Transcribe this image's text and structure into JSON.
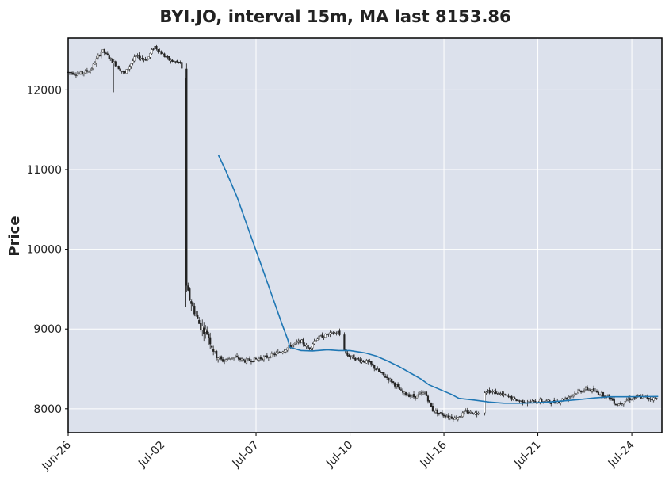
{
  "chart_data": {
    "type": "candlestick",
    "title": "BYI.JO, interval 15m, MA last 8153.86",
    "xlabel": "",
    "ylabel": "Price",
    "ylim": [
      7700,
      12650
    ],
    "yticks": [
      8000,
      9000,
      10000,
      11000,
      12000
    ],
    "xticks": [
      "Jun-26",
      "Jul-02",
      "Jul-07",
      "Jul-10",
      "Jul-16",
      "Jul-21",
      "Jul-24"
    ],
    "grid": true,
    "colors": {
      "plot_bg": "#dce1ec",
      "grid": "#ffffff",
      "candle": "#222222",
      "ma_line": "#1f77b4",
      "frame": "#000000"
    },
    "price_path": [
      [
        0,
        12220
      ],
      [
        3,
        12200
      ],
      [
        6,
        12250
      ],
      [
        9,
        12500
      ],
      [
        12,
        12350
      ],
      [
        15,
        12200
      ],
      [
        18,
        12420
      ],
      [
        21,
        12380
      ],
      [
        23,
        12550
      ],
      [
        25,
        12450
      ],
      [
        27,
        12370
      ],
      [
        30,
        12330
      ],
      [
        31,
        12100
      ],
      [
        31.5,
        9500
      ],
      [
        33,
        9300
      ],
      [
        35,
        9050
      ],
      [
        37,
        8950
      ],
      [
        39,
        8700
      ],
      [
        41,
        8600
      ],
      [
        44,
        8650
      ],
      [
        47,
        8600
      ],
      [
        50,
        8620
      ],
      [
        53,
        8650
      ],
      [
        56,
        8700
      ],
      [
        59,
        8780
      ],
      [
        62,
        8850
      ],
      [
        64,
        8750
      ],
      [
        66,
        8880
      ],
      [
        69,
        8930
      ],
      [
        72,
        8960
      ],
      [
        74,
        8680
      ],
      [
        77,
        8620
      ],
      [
        80,
        8580
      ],
      [
        83,
        8450
      ],
      [
        86,
        8350
      ],
      [
        89,
        8200
      ],
      [
        92,
        8150
      ],
      [
        95,
        8200
      ],
      [
        97,
        7980
      ],
      [
        100,
        7920
      ],
      [
        103,
        7880
      ],
      [
        106,
        7960
      ],
      [
        109,
        7940
      ],
      [
        111,
        8230
      ],
      [
        114,
        8200
      ],
      [
        117,
        8150
      ],
      [
        120,
        8100
      ],
      [
        123,
        8080
      ],
      [
        126,
        8100
      ],
      [
        129,
        8080
      ],
      [
        132,
        8120
      ],
      [
        135,
        8200
      ],
      [
        138,
        8250
      ],
      [
        141,
        8200
      ],
      [
        144,
        8150
      ],
      [
        146,
        8050
      ],
      [
        149,
        8120
      ],
      [
        152,
        8150
      ],
      [
        155,
        8130
      ],
      [
        157,
        8120
      ]
    ],
    "ma_series": [
      [
        40,
        11180
      ],
      [
        42,
        10980
      ],
      [
        45,
        10650
      ],
      [
        48,
        10250
      ],
      [
        51,
        9850
      ],
      [
        54,
        9450
      ],
      [
        57,
        9050
      ],
      [
        58.5,
        8860
      ],
      [
        59,
        8770
      ],
      [
        62,
        8730
      ],
      [
        65,
        8725
      ],
      [
        69,
        8740
      ],
      [
        72,
        8730
      ],
      [
        75,
        8730
      ],
      [
        79,
        8700
      ],
      [
        82,
        8660
      ],
      [
        85,
        8600
      ],
      [
        88,
        8530
      ],
      [
        91,
        8450
      ],
      [
        94,
        8370
      ],
      [
        96,
        8300
      ],
      [
        99,
        8240
      ],
      [
        102,
        8180
      ],
      [
        104,
        8130
      ],
      [
        108,
        8110
      ],
      [
        112,
        8085
      ],
      [
        116,
        8070
      ],
      [
        120,
        8070
      ],
      [
        124,
        8075
      ],
      [
        128,
        8085
      ],
      [
        132,
        8100
      ],
      [
        136,
        8115
      ],
      [
        140,
        8135
      ],
      [
        144,
        8150
      ],
      [
        148,
        8150
      ],
      [
        152,
        8152
      ],
      [
        157,
        8154
      ]
    ]
  }
}
